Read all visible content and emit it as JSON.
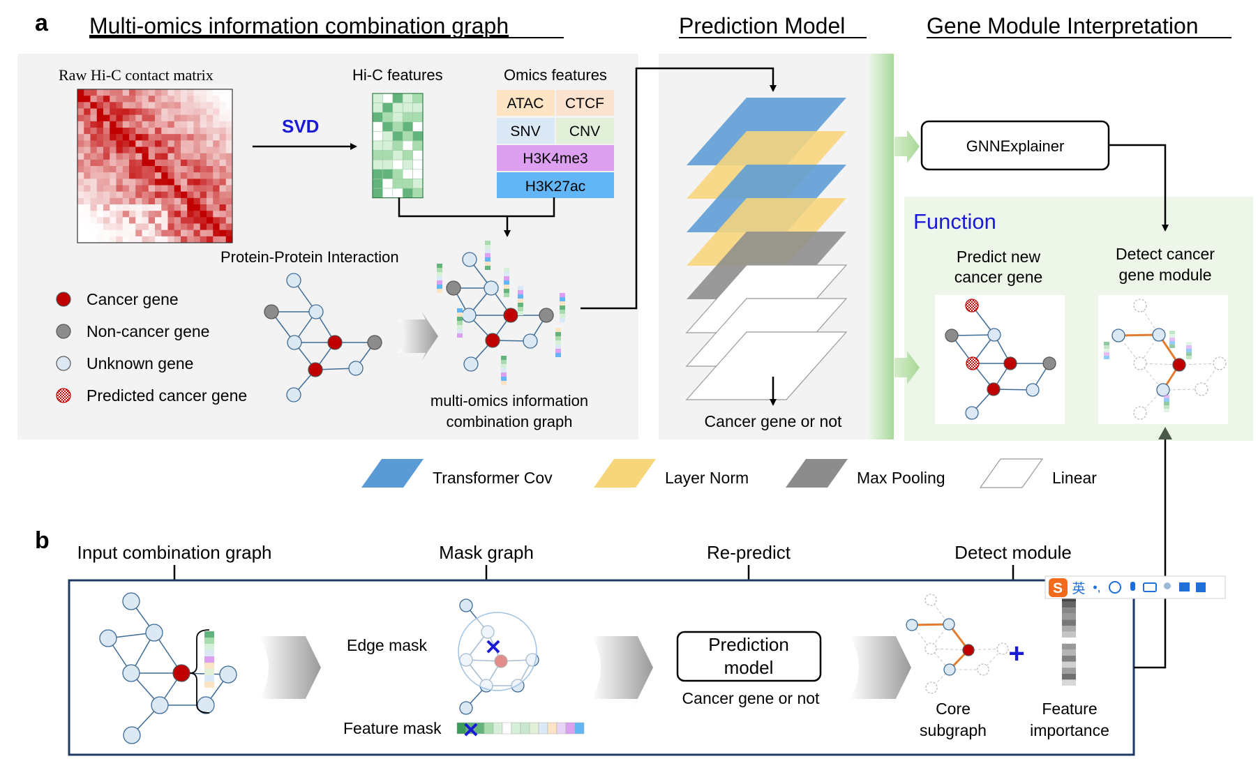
{
  "panel_a": {
    "letter": "a",
    "headings": {
      "multiomics": "Multi-omics information combination graph",
      "prediction": "Prediction Model",
      "interpretation": "Gene Module Interpretation"
    },
    "raw_hic_label": "Raw Hi-C contact matrix",
    "svd_label": "SVD",
    "hic_features_label": "Hi-C features",
    "omics_features_label": "Omics features",
    "omics": {
      "atac": "ATAC",
      "ctcf": "CTCF",
      "snv": "SNV",
      "cnv": "CNV",
      "h3k4me3": "H3K4me3",
      "h3k27ac": "H3K27ac"
    },
    "ppi_label": "Protein-Protein Interaction",
    "legend": {
      "cancer": "Cancer gene",
      "noncancer": "Non-cancer gene",
      "unknown": "Unknown gene",
      "predicted": "Predicted cancer gene"
    },
    "combo_graph_label_1": "multi-omics information",
    "combo_graph_label_2": "combination graph",
    "model_output": "Cancer gene or not",
    "gnnexplainer": "GNNExplainer",
    "function_title": "Function",
    "predict_new_1": "Predict new",
    "predict_new_2": "cancer gene",
    "detect_module_1": "Detect cancer",
    "detect_module_2": "gene module",
    "layer_legend": {
      "transformer": "Transformer Cov",
      "layernorm": "Layer Norm",
      "maxpool": "Max Pooling",
      "linear": "Linear"
    }
  },
  "panel_b": {
    "letter": "b",
    "steps": {
      "input": "Input combination graph",
      "mask": "Mask graph",
      "repredict": "Re-predict",
      "detect": "Detect module"
    },
    "edge_mask": "Edge mask",
    "feature_mask": "Feature mask",
    "prediction_model_1": "Prediction",
    "prediction_model_2": "model",
    "model_output": "Cancer gene or not",
    "core_subgraph_1": "Core",
    "core_subgraph_2": "subgraph",
    "feature_importance_1": "Feature",
    "feature_importance_2": "importance"
  },
  "colors": {
    "cancer": "#c00000",
    "noncancer": "#8c8c8c",
    "unknown": "#dce9f5",
    "edge": "#3d6a96",
    "transformer": "#5b9bd5",
    "layernorm": "#f7d57a",
    "maxpool": "#8c8c8c",
    "hic_green": "#63b37c",
    "atac": "#fce4c4",
    "ctcf": "#fbe3d0",
    "snv": "#dbe8f5",
    "cnv": "#e2f0d9",
    "h3k4me3": "#dda0f0",
    "h3k27ac": "#62b6f5"
  }
}
